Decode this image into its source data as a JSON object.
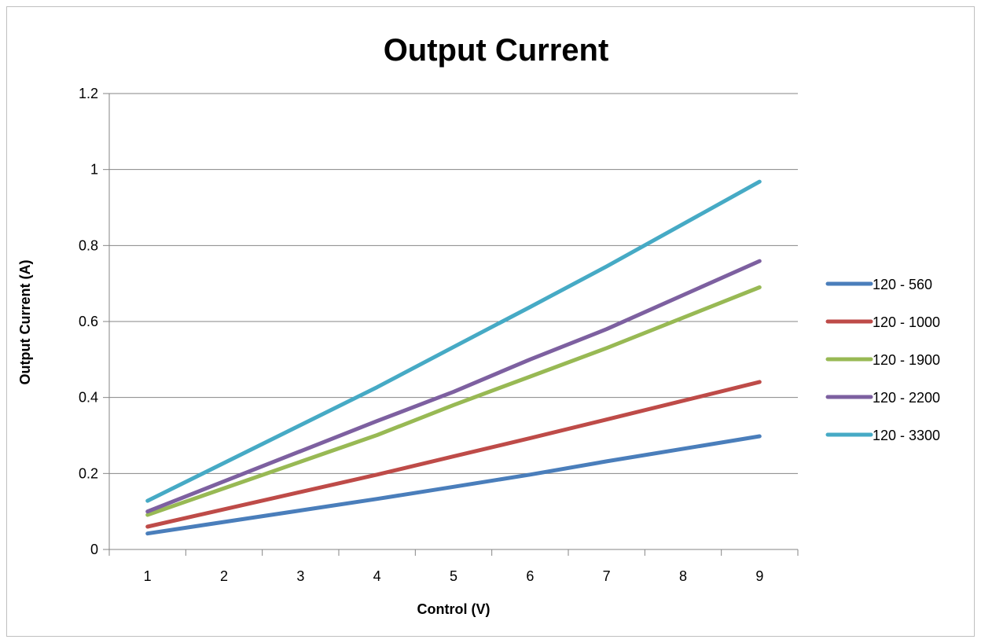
{
  "chart_data": {
    "type": "line",
    "title": "Output Current",
    "xlabel": "Control (V)",
    "ylabel": "Output Current (A)",
    "x": [
      1,
      4,
      5,
      6,
      7,
      9
    ],
    "xticks": [
      "1",
      "2",
      "3",
      "4",
      "5",
      "6",
      "7",
      "8",
      "9"
    ],
    "yticks": [
      "0",
      "0.2",
      "0.4",
      "0.6",
      "0.8",
      "1",
      "1.2"
    ],
    "ylim": [
      0,
      1.2
    ],
    "grid": "horizontal",
    "legend_position": "right",
    "series": [
      {
        "name": "120 - 560",
        "color": "#4a7ebb",
        "values": [
          0.042,
          0.133,
          0.165,
          0.197,
          0.232,
          0.298
        ]
      },
      {
        "name": "120 - 1000",
        "color": "#be4b48",
        "values": [
          0.06,
          0.197,
          0.245,
          0.293,
          0.342,
          0.441
        ]
      },
      {
        "name": "120 - 1900",
        "color": "#98b954",
        "values": [
          0.091,
          0.301,
          0.38,
          0.455,
          0.53,
          0.69
        ]
      },
      {
        "name": "120 - 2200",
        "color": "#7d60a0",
        "values": [
          0.1,
          0.338,
          0.415,
          0.5,
          0.58,
          0.759
        ]
      },
      {
        "name": "120 - 3300",
        "color": "#46aac5",
        "values": [
          0.128,
          0.427,
          0.533,
          0.638,
          0.745,
          0.968
        ]
      }
    ]
  }
}
